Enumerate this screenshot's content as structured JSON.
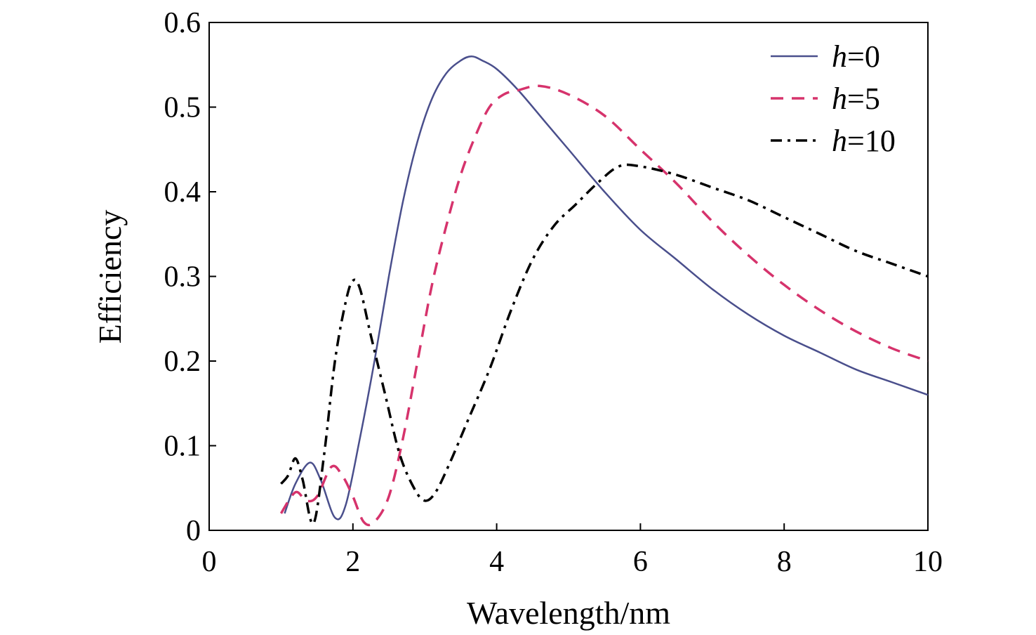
{
  "chart_data": {
    "type": "line",
    "title": "",
    "xlabel": "Wavelength/nm",
    "ylabel": "Efficiency",
    "xlim": [
      0,
      10
    ],
    "ylim": [
      0,
      0.6
    ],
    "xticks": [
      "0",
      "2",
      "4",
      "6",
      "8",
      "10"
    ],
    "yticks": [
      "0",
      "0.1",
      "0.2",
      "0.3",
      "0.4",
      "0.5",
      "0.6"
    ],
    "grid": false,
    "legend_position": "top-right",
    "series": [
      {
        "name": "h=0",
        "name_italic": "h",
        "name_rest": "=0",
        "color": "#4a4f8c",
        "dash": "solid",
        "x": [
          1.05,
          1.2,
          1.4,
          1.55,
          1.75,
          1.9,
          2.1,
          2.3,
          2.5,
          2.7,
          2.9,
          3.1,
          3.3,
          3.5,
          3.65,
          3.8,
          4.0,
          4.3,
          4.7,
          5.0,
          5.5,
          6.0,
          6.5,
          7.0,
          7.5,
          8.0,
          8.5,
          9.0,
          9.5,
          10.0
        ],
        "y": [
          0.02,
          0.055,
          0.08,
          0.06,
          0.015,
          0.03,
          0.11,
          0.2,
          0.3,
          0.39,
          0.46,
          0.51,
          0.54,
          0.555,
          0.56,
          0.555,
          0.545,
          0.52,
          0.48,
          0.45,
          0.4,
          0.355,
          0.32,
          0.285,
          0.255,
          0.23,
          0.21,
          0.19,
          0.175,
          0.16
        ]
      },
      {
        "name": "h=5",
        "name_italic": "h",
        "name_rest": "=5",
        "color": "#d6336c",
        "dash": "dashed",
        "x": [
          1.0,
          1.2,
          1.35,
          1.5,
          1.7,
          1.85,
          2.0,
          2.15,
          2.3,
          2.5,
          2.7,
          2.9,
          3.1,
          3.3,
          3.5,
          3.7,
          3.9,
          4.1,
          4.3,
          4.6,
          5.0,
          5.5,
          6.0,
          6.5,
          7.0,
          7.5,
          8.0,
          8.5,
          9.0,
          9.5,
          10.0
        ],
        "y": [
          0.02,
          0.045,
          0.035,
          0.04,
          0.075,
          0.065,
          0.04,
          0.01,
          0.01,
          0.04,
          0.11,
          0.2,
          0.29,
          0.36,
          0.42,
          0.465,
          0.5,
          0.515,
          0.52,
          0.525,
          0.515,
          0.49,
          0.45,
          0.41,
          0.365,
          0.325,
          0.29,
          0.26,
          0.235,
          0.215,
          0.2
        ]
      },
      {
        "name": "h=10",
        "name_italic": "h",
        "name_rest": "=10",
        "color": "#000000",
        "dash": "dash-dot",
        "x": [
          1.0,
          1.1,
          1.2,
          1.3,
          1.45,
          1.6,
          1.75,
          1.9,
          2.0,
          2.1,
          2.25,
          2.45,
          2.65,
          2.85,
          3.0,
          3.15,
          3.35,
          3.6,
          3.9,
          4.2,
          4.5,
          4.8,
          5.1,
          5.4,
          5.7,
          6.0,
          6.5,
          7.0,
          7.5,
          8.0,
          8.5,
          9.0,
          9.5,
          10.0
        ],
        "y": [
          0.055,
          0.065,
          0.085,
          0.06,
          0.008,
          0.09,
          0.2,
          0.27,
          0.295,
          0.285,
          0.23,
          0.16,
          0.09,
          0.05,
          0.035,
          0.045,
          0.08,
          0.13,
          0.19,
          0.26,
          0.32,
          0.36,
          0.385,
          0.41,
          0.43,
          0.43,
          0.42,
          0.405,
          0.39,
          0.37,
          0.35,
          0.33,
          0.315,
          0.3
        ]
      }
    ]
  }
}
